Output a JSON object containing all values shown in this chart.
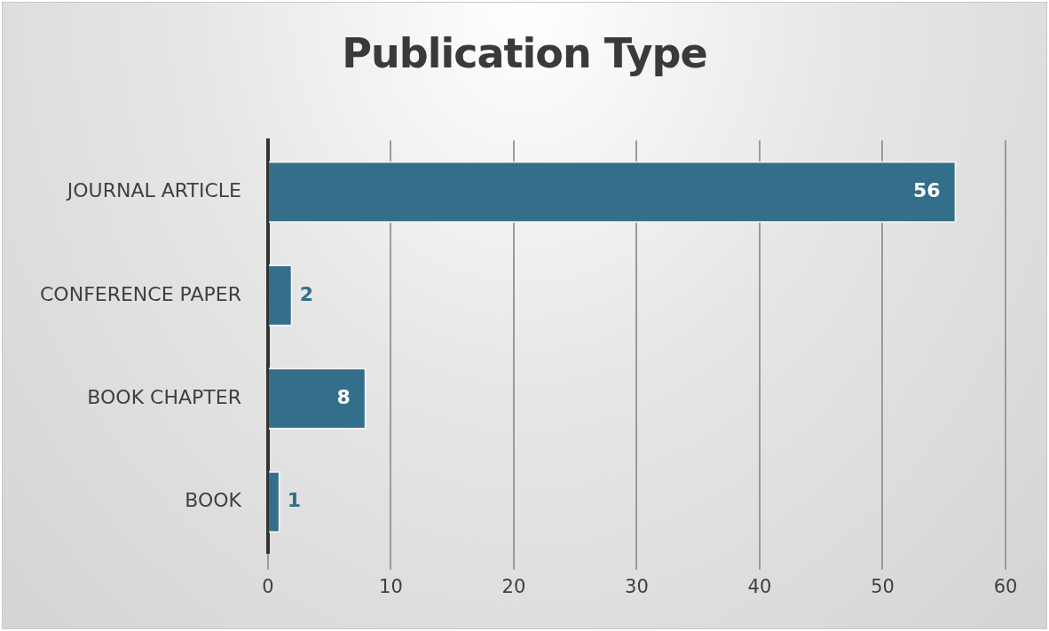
{
  "chart_data": {
    "type": "bar",
    "orientation": "horizontal",
    "title": "Publication Type",
    "categories": [
      "JOURNAL ARTICLE",
      "CONFERENCE PAPER",
      "BOOK CHAPTER",
      "BOOK"
    ],
    "values": [
      56,
      2,
      8,
      1
    ],
    "color": "#336e8a",
    "xlim": [
      0,
      60
    ],
    "xticks": [
      0,
      10,
      20,
      30,
      40,
      50,
      60
    ],
    "grid": "x",
    "data_labels": true,
    "legend": false
  }
}
